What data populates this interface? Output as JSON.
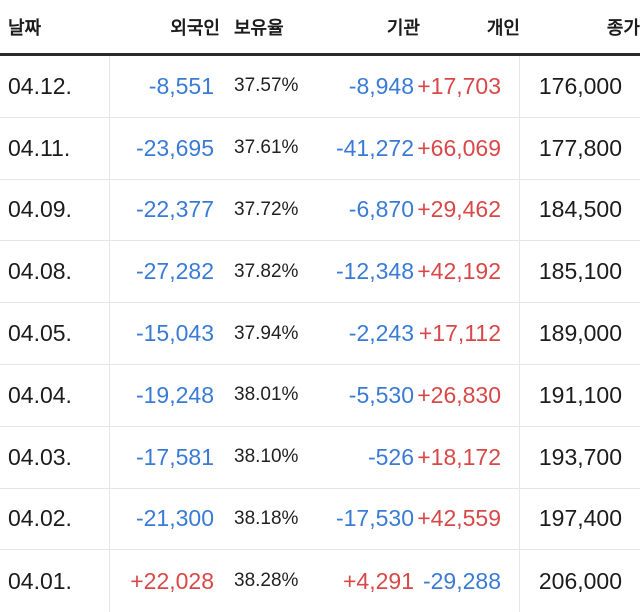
{
  "colors": {
    "negative": "#3a7bd5",
    "positive": "#d94848"
  },
  "header": {
    "date": "날짜",
    "foreign": "외국인",
    "holding": "보유율",
    "institution": "기관",
    "individual": "개인",
    "close": "종가"
  },
  "rows": [
    {
      "date": "04.12.",
      "foreign": "-8,551",
      "holding": "37.57%",
      "institution": "-8,948",
      "individual": "+17,703",
      "close": "176,000"
    },
    {
      "date": "04.11.",
      "foreign": "-23,695",
      "holding": "37.61%",
      "institution": "-41,272",
      "individual": "+66,069",
      "close": "177,800"
    },
    {
      "date": "04.09.",
      "foreign": "-22,377",
      "holding": "37.72%",
      "institution": "-6,870",
      "individual": "+29,462",
      "close": "184,500"
    },
    {
      "date": "04.08.",
      "foreign": "-27,282",
      "holding": "37.82%",
      "institution": "-12,348",
      "individual": "+42,192",
      "close": "185,100"
    },
    {
      "date": "04.05.",
      "foreign": "-15,043",
      "holding": "37.94%",
      "institution": "-2,243",
      "individual": "+17,112",
      "close": "189,000"
    },
    {
      "date": "04.04.",
      "foreign": "-19,248",
      "holding": "38.01%",
      "institution": "-5,530",
      "individual": "+26,830",
      "close": "191,100"
    },
    {
      "date": "04.03.",
      "foreign": "-17,581",
      "holding": "38.10%",
      "institution": "-526",
      "individual": "+18,172",
      "close": "193,700"
    },
    {
      "date": "04.02.",
      "foreign": "-21,300",
      "holding": "38.18%",
      "institution": "-17,530",
      "individual": "+42,559",
      "close": "197,400"
    },
    {
      "date": "04.01.",
      "foreign": "+22,028",
      "holding": "38.28%",
      "institution": "+4,291",
      "individual": "-29,288",
      "close": "206,000"
    }
  ]
}
